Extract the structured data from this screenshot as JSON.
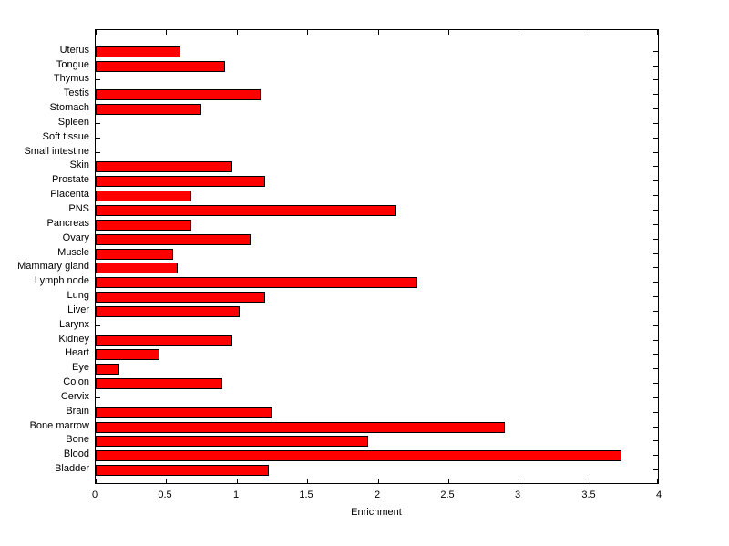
{
  "chart_data": {
    "type": "bar",
    "orientation": "horizontal",
    "title": "",
    "xlabel": "Enrichment",
    "ylabel": "",
    "xlim": [
      0,
      4
    ],
    "xticks": [
      0,
      0.5,
      1,
      1.5,
      2,
      2.5,
      3,
      3.5,
      4
    ],
    "xtick_labels": [
      "0",
      "0.5",
      "1",
      "1.5",
      "2",
      "2.5",
      "3",
      "3.5",
      "4"
    ],
    "grid": false,
    "bar_color": "#ff0000",
    "bar_edge_color": "#000000",
    "categories_top_to_bottom": [
      "Uterus",
      "Tongue",
      "Thymus",
      "Testis",
      "Stomach",
      "Spleen",
      "Soft tissue",
      "Small intestine",
      "Skin",
      "Prostate",
      "Placenta",
      "PNS",
      "Pancreas",
      "Ovary",
      "Muscle",
      "Mammary gland",
      "Lymph node",
      "Lung",
      "Liver",
      "Larynx",
      "Kidney",
      "Heart",
      "Eye",
      "Colon",
      "Cervix",
      "Brain",
      "Bone marrow",
      "Bone",
      "Blood",
      "Bladder"
    ],
    "values_top_to_bottom": [
      0.6,
      0.92,
      0,
      1.17,
      0.75,
      0,
      0,
      0,
      0.97,
      1.2,
      0.68,
      2.13,
      0.68,
      1.1,
      0.55,
      0.58,
      2.28,
      1.2,
      1.02,
      0,
      0.97,
      0.45,
      0.17,
      0.9,
      0,
      1.25,
      2.9,
      1.93,
      3.73,
      1.23
    ]
  }
}
